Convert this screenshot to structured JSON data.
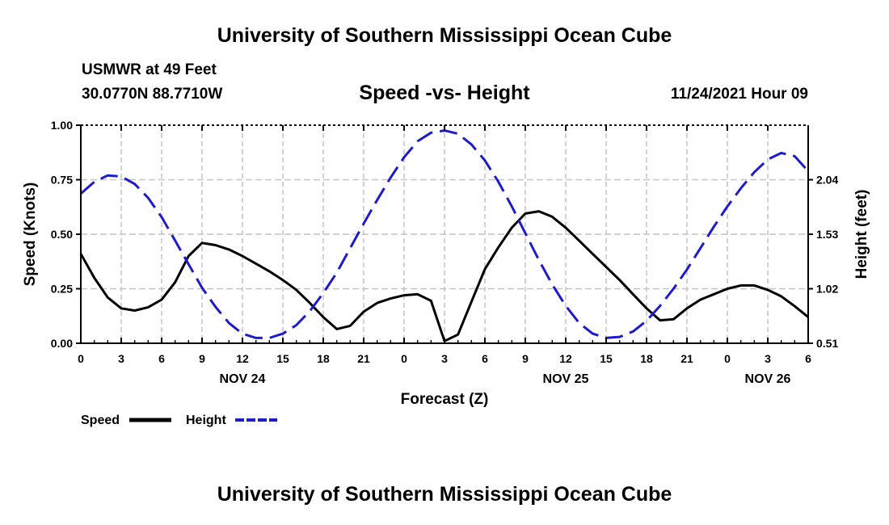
{
  "header": {
    "title_top": "University of Southern Mississippi Ocean Cube",
    "station": "USMWR at 49 Feet",
    "coords": "30.0770N  88.7710W",
    "datetime": "11/24/2021 Hour 09",
    "title_bottom": "University of Southern Mississippi Ocean Cube"
  },
  "chart_data": {
    "type": "line",
    "title": "Speed -vs- Height",
    "xlabel": "Forecast (Z)",
    "ylabel": "Speed (Knots)",
    "y2label": "Height (feet)",
    "xlim": [
      0,
      54
    ],
    "ylim": [
      0,
      1
    ],
    "y2lim": [
      0.51,
      2.55
    ],
    "x_tick_values": [
      0,
      3,
      6,
      9,
      12,
      15,
      18,
      21,
      24,
      27,
      30,
      33,
      36,
      39,
      42,
      45,
      48,
      51,
      54
    ],
    "x_tick_labels": [
      "0",
      "3",
      "6",
      "9",
      "12",
      "15",
      "18",
      "21",
      "0",
      "3",
      "6",
      "9",
      "12",
      "15",
      "18",
      "21",
      "0",
      "3",
      "6"
    ],
    "y_ticks": [
      {
        "value": 0,
        "label": "0.00"
      },
      {
        "value": 0.25,
        "label": "0.25"
      },
      {
        "value": 0.5,
        "label": "0.50"
      },
      {
        "value": 0.75,
        "label": "0.75"
      },
      {
        "value": 1,
        "label": "1.00"
      }
    ],
    "y2_ticks": [
      {
        "value": 0.51,
        "label": "0.51"
      },
      {
        "value": 1.02,
        "label": "1.02"
      },
      {
        "value": 1.53,
        "label": "1.53"
      },
      {
        "value": 2.04,
        "label": "2.04"
      }
    ],
    "date_labels": [
      {
        "x": 12,
        "label": "NOV 24"
      },
      {
        "x": 36,
        "label": "NOV 25"
      },
      {
        "x": 51,
        "label": "NOV 26"
      }
    ],
    "grid": true,
    "legend_position": "bottom-left",
    "series": [
      {
        "name": "Speed",
        "axis": "left",
        "color": "#000000",
        "dash": "solid",
        "x": [
          0,
          1,
          2,
          3,
          4,
          5,
          6,
          7,
          8,
          9,
          10,
          11,
          12,
          13,
          14,
          15,
          16,
          17,
          18,
          19,
          20,
          21,
          22,
          23,
          24,
          25,
          26,
          27,
          28,
          29,
          30,
          31,
          32,
          33,
          34,
          35,
          36,
          37,
          38,
          39,
          40,
          41,
          42,
          43,
          44,
          45,
          46,
          47,
          48,
          49,
          50,
          51,
          52,
          53,
          54
        ],
        "y": [
          0.41,
          0.3,
          0.21,
          0.16,
          0.15,
          0.165,
          0.2,
          0.28,
          0.4,
          0.46,
          0.45,
          0.43,
          0.4,
          0.365,
          0.33,
          0.29,
          0.245,
          0.185,
          0.12,
          0.065,
          0.08,
          0.145,
          0.185,
          0.205,
          0.22,
          0.225,
          0.195,
          0.01,
          0.04,
          0.19,
          0.34,
          0.44,
          0.53,
          0.595,
          0.605,
          0.58,
          0.53,
          0.47,
          0.41,
          0.35,
          0.29,
          0.225,
          0.16,
          0.105,
          0.11,
          0.16,
          0.2,
          0.225,
          0.25,
          0.265,
          0.265,
          0.245,
          0.215,
          0.17,
          0.12
        ]
      },
      {
        "name": "Height",
        "axis": "right",
        "color": "#1c1ccc",
        "dash": "dashed",
        "x": [
          0,
          1,
          2,
          3,
          4,
          5,
          6,
          7,
          8,
          9,
          10,
          11,
          12,
          13,
          14,
          15,
          16,
          17,
          18,
          19,
          20,
          21,
          22,
          23,
          24,
          25,
          26,
          27,
          28,
          29,
          30,
          31,
          32,
          33,
          34,
          35,
          36,
          37,
          38,
          39,
          40,
          41,
          42,
          43,
          44,
          45,
          46,
          47,
          48,
          49,
          50,
          51,
          52,
          53,
          54
        ],
        "y": [
          1.91,
          2.02,
          2.08,
          2.07,
          2.0,
          1.87,
          1.69,
          1.47,
          1.25,
          1.03,
          0.85,
          0.7,
          0.6,
          0.56,
          0.56,
          0.6,
          0.68,
          0.81,
          0.98,
          1.17,
          1.4,
          1.63,
          1.85,
          2.06,
          2.25,
          2.4,
          2.48,
          2.5,
          2.47,
          2.37,
          2.22,
          2.02,
          1.79,
          1.54,
          1.29,
          1.06,
          0.86,
          0.7,
          0.6,
          0.56,
          0.57,
          0.62,
          0.72,
          0.86,
          1.02,
          1.2,
          1.4,
          1.6,
          1.79,
          1.96,
          2.11,
          2.23,
          2.29,
          2.26,
          2.12
        ]
      }
    ]
  }
}
